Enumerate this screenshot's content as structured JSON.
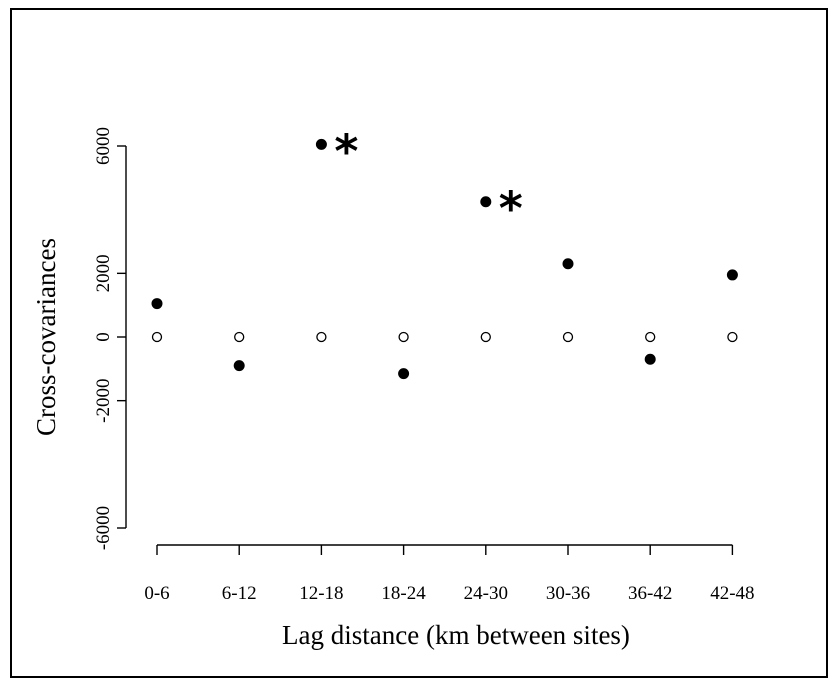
{
  "chart_data": {
    "type": "scatter",
    "title": "",
    "xlabel": "Lag distance (km between sites)",
    "ylabel": "Cross-covariances",
    "categories": [
      "0-6",
      "6-12",
      "12-18",
      "18-24",
      "24-30",
      "30-36",
      "36-42",
      "42-48"
    ],
    "ylim": [
      -6000,
      6000
    ],
    "yticks": [
      -6000,
      -2000,
      0,
      2000,
      6000
    ],
    "grid": false,
    "series": [
      {
        "name": "",
        "marker": "filled-circle",
        "values": [
          1050,
          -900,
          6050,
          -1150,
          4250,
          2300,
          -700,
          1950
        ],
        "significant": [
          false,
          false,
          true,
          false,
          true,
          false,
          false,
          false
        ]
      },
      {
        "name": "",
        "marker": "open-circle",
        "values": [
          0,
          0,
          0,
          0,
          0,
          0,
          0,
          0
        ]
      }
    ],
    "annotations": [
      {
        "text": "*",
        "category": "12-18"
      },
      {
        "text": "*",
        "category": "24-30"
      }
    ]
  }
}
